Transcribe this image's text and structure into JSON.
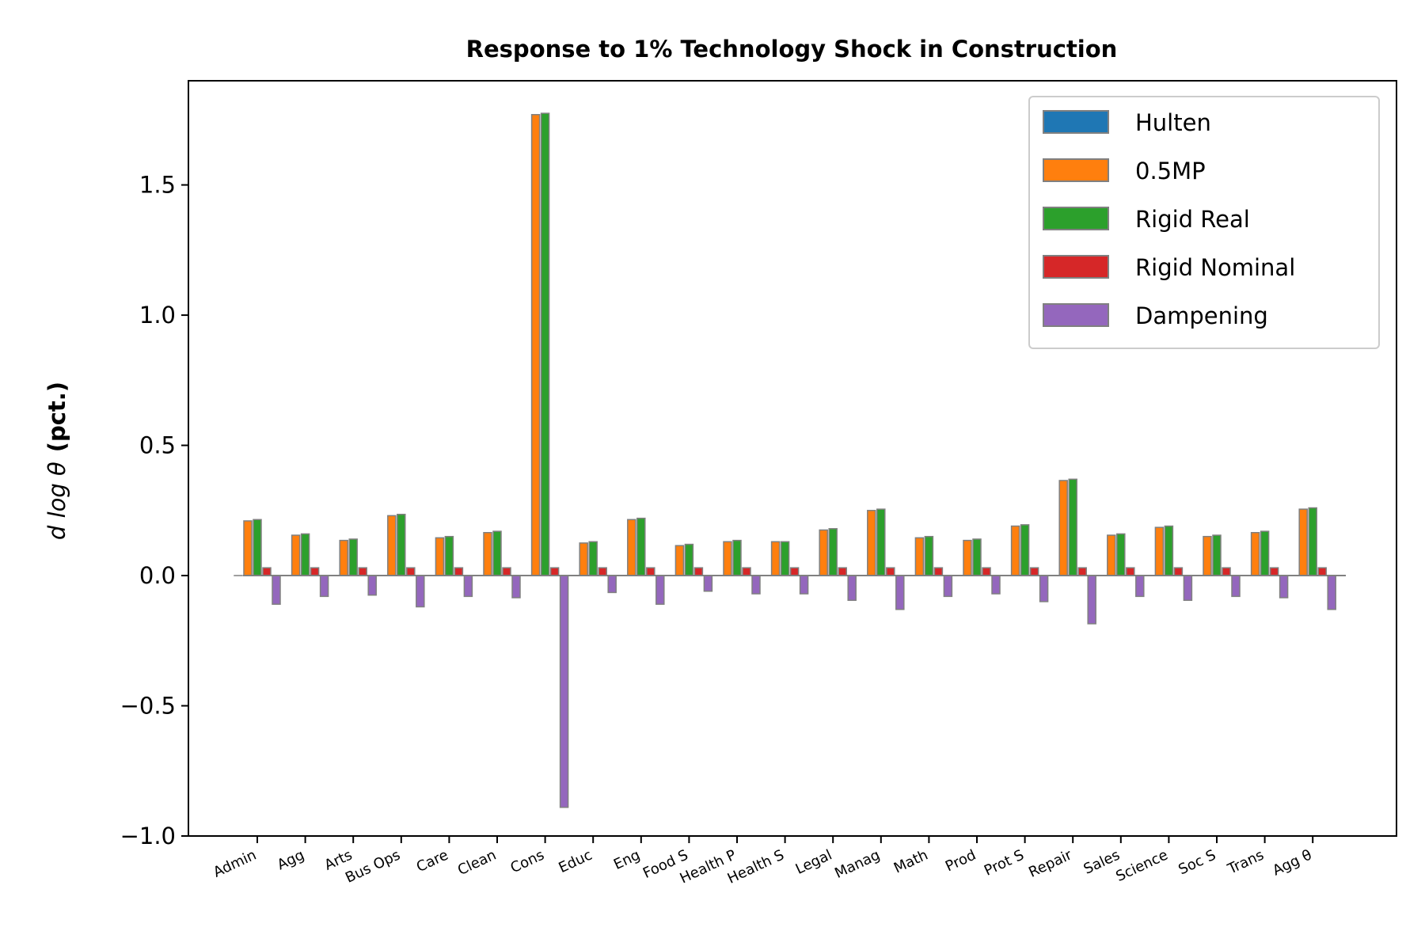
{
  "chart_data": {
    "type": "bar",
    "title": "Response to 1% Technology Shock in Construction",
    "ylabel_math": "d log θ",
    "ylabel_unit": "(pct.)",
    "xlabel": "",
    "ylim": [
      -1.0,
      1.9
    ],
    "yticks": [
      -1.0,
      -0.5,
      0.0,
      0.5,
      1.0,
      1.5
    ],
    "ytick_labels": [
      "−1.0",
      "−0.5",
      "0.0",
      "0.5",
      "1.0",
      "1.5"
    ],
    "legend_position": "top-right",
    "grid": false,
    "categories": [
      "Admin",
      "Agg",
      "Arts",
      "Bus Ops",
      "Care",
      "Clean",
      "Cons",
      "Educ",
      "Eng",
      "Food S",
      "Health P",
      "Health S",
      "Legal",
      "Manag",
      "Math",
      "Prod",
      "Prot S",
      "Repair",
      "Sales",
      "Science",
      "Soc S",
      "Trans",
      "Agg θ"
    ],
    "series": [
      {
        "name": "Hulten",
        "color": "#1f77b4",
        "values": [
          0,
          0,
          0,
          0,
          0,
          0,
          0,
          0,
          0,
          0,
          0,
          0,
          0,
          0,
          0,
          0,
          0,
          0,
          0,
          0,
          0,
          0,
          0
        ]
      },
      {
        "name": "0.5MP",
        "color": "#ff7f0e",
        "values": [
          0.21,
          0.155,
          0.135,
          0.23,
          0.145,
          0.165,
          1.77,
          0.125,
          0.215,
          0.115,
          0.13,
          0.13,
          0.175,
          0.25,
          0.145,
          0.135,
          0.19,
          0.365,
          0.155,
          0.185,
          0.15,
          0.165,
          0.255
        ]
      },
      {
        "name": "Rigid Real",
        "color": "#2ca02c",
        "values": [
          0.215,
          0.16,
          0.14,
          0.235,
          0.15,
          0.17,
          1.775,
          0.13,
          0.22,
          0.12,
          0.135,
          0.13,
          0.18,
          0.255,
          0.15,
          0.14,
          0.195,
          0.37,
          0.16,
          0.19,
          0.155,
          0.17,
          0.26
        ]
      },
      {
        "name": "Rigid Nominal",
        "color": "#d62728",
        "values": [
          0.03,
          0.03,
          0.03,
          0.03,
          0.03,
          0.03,
          0.03,
          0.03,
          0.03,
          0.03,
          0.03,
          0.03,
          0.03,
          0.03,
          0.03,
          0.03,
          0.03,
          0.03,
          0.03,
          0.03,
          0.03,
          0.03,
          0.03
        ]
      },
      {
        "name": "Dampening",
        "color": "#9467bd",
        "values": [
          -0.11,
          -0.08,
          -0.075,
          -0.12,
          -0.08,
          -0.085,
          -0.89,
          -0.065,
          -0.11,
          -0.06,
          -0.07,
          -0.07,
          -0.095,
          -0.13,
          -0.08,
          -0.07,
          -0.1,
          -0.185,
          -0.08,
          -0.095,
          -0.08,
          -0.085,
          -0.13
        ]
      }
    ]
  }
}
